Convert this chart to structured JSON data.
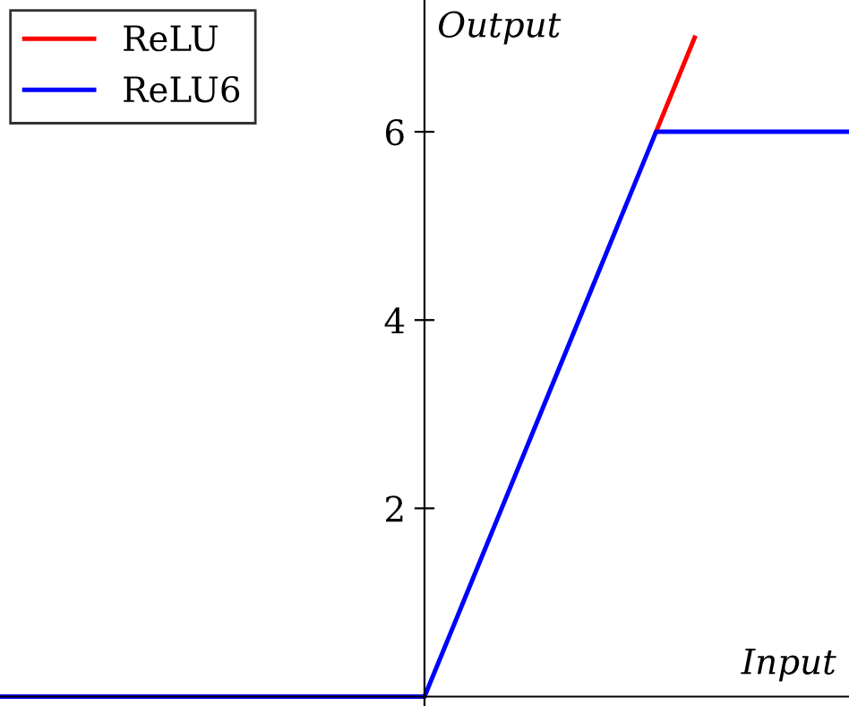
{
  "chart_data": {
    "type": "line",
    "xlabel": "Input",
    "ylabel": "Output",
    "categories": [
      null,
      null,
      null,
      null,
      null,
      null,
      null,
      null,
      null,
      null,
      null,
      null,
      null,
      null,
      null,
      null,
      null,
      null,
      null,
      null,
      null,
      null,
      null
    ],
    "series": [
      {
        "name": "ReLU",
        "color": "#ff0000",
        "values": [
          null,
          null,
          null,
          null,
          null,
          null,
          null,
          null,
          null,
          null,
          null,
          null,
          null,
          null,
          null,
          null,
          null,
          6,
          7,
          null,
          null,
          null,
          null
        ]
      },
      {
        "name": "ReLU6",
        "color": "#0000ff",
        "values": [
          0,
          0,
          0,
          0,
          0,
          0,
          0,
          0,
          0,
          0,
          0,
          0,
          1,
          2,
          3,
          4,
          5,
          6,
          6,
          6,
          6,
          6,
          6
        ]
      }
    ],
    "ylim": [
      -0.1,
      7.4
    ],
    "yticks": [
      2,
      4,
      6
    ],
    "tick_labels": "y",
    "legend": "top left",
    "grid": false
  }
}
